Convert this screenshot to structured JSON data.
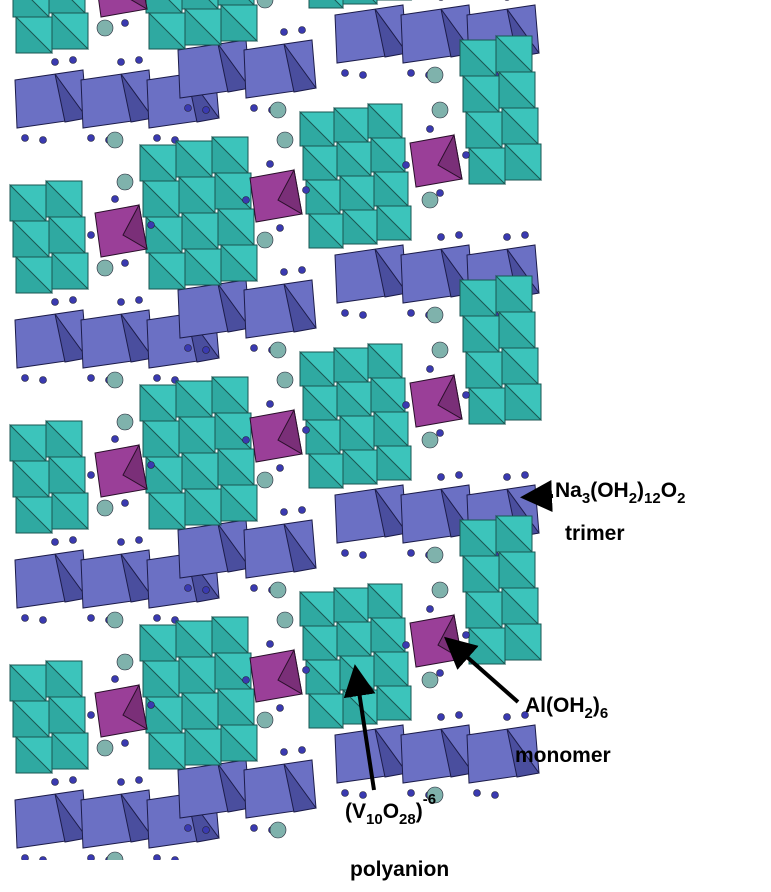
{
  "labels": {
    "trimer": {
      "formula": [
        "Na",
        "3",
        "(OH",
        "2",
        ")",
        "12",
        "O",
        "2"
      ],
      "name": "trimer"
    },
    "monomer": {
      "formula": [
        "Al(OH",
        "2",
        ")",
        "6"
      ],
      "name": "monomer"
    },
    "polyanion": {
      "formula": [
        "(V",
        "10",
        "O",
        "28",
        ")",
        "-6"
      ],
      "name": "polyanion"
    }
  }
}
